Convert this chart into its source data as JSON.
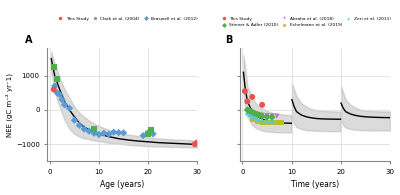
{
  "panel_A": {
    "label": "A",
    "xlabel": "Age (years)",
    "ylabel": "NEE (gC m⁻² yr⁻1)",
    "xlim": [
      -0.5,
      30
    ],
    "ylim": [
      -1500,
      1800
    ],
    "yticks": [
      -1000,
      0,
      1000
    ],
    "xticks": [
      0,
      10,
      20,
      30
    ],
    "curve_x": [
      0.3,
      0.5,
      1,
      1.5,
      2,
      3,
      4,
      5,
      6,
      7,
      8,
      9,
      10,
      12,
      14,
      16,
      18,
      20,
      22,
      25,
      28,
      30
    ],
    "curve_y": [
      1500,
      1350,
      1000,
      800,
      600,
      250,
      0,
      -200,
      -380,
      -500,
      -580,
      -650,
      -700,
      -780,
      -840,
      -880,
      -910,
      -930,
      -955,
      -975,
      -995,
      -1010
    ],
    "ci_upper": [
      1700,
      1600,
      1350,
      1150,
      950,
      600,
      350,
      100,
      -80,
      -200,
      -310,
      -400,
      -470,
      -580,
      -660,
      -720,
      -760,
      -800,
      -830,
      -860,
      -880,
      -900
    ],
    "ci_lower": [
      1100,
      950,
      550,
      300,
      100,
      -300,
      -550,
      -700,
      -780,
      -830,
      -860,
      -890,
      -910,
      -960,
      -990,
      -1020,
      -1040,
      -1060,
      -1070,
      -1080,
      -1090,
      -1100
    ],
    "this_study": {
      "x": [
        0.8,
        29.5,
        30
      ],
      "y": [
        600,
        -1000,
        -950
      ],
      "color": "#e8534a",
      "marker": "o",
      "size": 18
    },
    "clark2004": {
      "x": [
        0.8,
        1.5,
        9,
        20,
        20.5
      ],
      "y": [
        1250,
        900,
        -550,
        -700,
        -580
      ],
      "color": "#4daf4a",
      "marker": "s",
      "size": 18
    },
    "braswell2012": {
      "x": [
        1.0,
        1.5,
        2.0,
        2.5,
        3.0,
        4.0,
        5.0,
        6.0,
        7.0,
        8.0,
        9.0,
        10.0,
        11.0,
        12.0,
        13.0,
        14.0,
        15.0,
        19.0,
        20.0,
        21.0
      ],
      "y": [
        700,
        500,
        450,
        300,
        150,
        50,
        -300,
        -450,
        -560,
        -620,
        -680,
        -720,
        -680,
        -710,
        -650,
        -660,
        -670,
        -750,
        -660,
        -700
      ],
      "color": "#5b9bd5",
      "marker": "D",
      "size": 14
    },
    "legend": [
      {
        "label": "This Study",
        "color": "#e8534a",
        "marker": "o"
      },
      {
        "label": "Clark et al. (2004)",
        "color": "#4daf4a",
        "marker": "s"
      },
      {
        "label": "Braswell et al. (2012)",
        "color": "#5b9bd5",
        "marker": "D"
      }
    ]
  },
  "panel_B": {
    "label": "B",
    "xlabel": "Time (years)",
    "xlim": [
      -0.5,
      30
    ],
    "ylim": [
      -1500,
      1800
    ],
    "yticks": [
      -1000,
      0,
      1000
    ],
    "xticks": [
      0,
      10,
      20,
      30
    ],
    "curve_seg1_x": [
      0.2,
      0.5,
      1,
      2,
      3,
      4,
      5,
      6,
      7,
      8,
      9,
      9.95
    ],
    "curve_seg1_y": [
      1100,
      700,
      250,
      -50,
      -180,
      -270,
      -320,
      -350,
      -370,
      -380,
      -385,
      -390
    ],
    "ci_seg1_upper": [
      1600,
      1300,
      700,
      350,
      150,
      50,
      -30,
      -80,
      -110,
      -130,
      -145,
      -150
    ],
    "ci_seg1_lower": [
      500,
      100,
      -200,
      -450,
      -550,
      -600,
      -630,
      -640,
      -650,
      -655,
      -658,
      -660
    ],
    "curve_seg2_x": [
      10.05,
      10.5,
      11,
      12,
      13,
      14,
      15,
      16,
      17,
      18,
      19,
      19.95
    ],
    "curve_seg2_y": [
      300,
      100,
      -50,
      -150,
      -200,
      -230,
      -250,
      -260,
      -265,
      -268,
      -270,
      -272
    ],
    "ci_seg2_upper": [
      800,
      600,
      400,
      200,
      100,
      30,
      0,
      -20,
      -35,
      -40,
      -45,
      -47
    ],
    "ci_seg2_lower": [
      -200,
      -400,
      -500,
      -560,
      -590,
      -600,
      -610,
      -615,
      -618,
      -620,
      -621,
      -622
    ],
    "curve_seg3_x": [
      20.05,
      20.5,
      21,
      22,
      23,
      24,
      25,
      26,
      27,
      28,
      29,
      30
    ],
    "curve_seg3_y": [
      200,
      50,
      -50,
      -120,
      -160,
      -185,
      -200,
      -210,
      -215,
      -220,
      -223,
      -225
    ],
    "ci_seg3_upper": [
      700,
      500,
      300,
      150,
      60,
      10,
      -15,
      -30,
      -38,
      -43,
      -46,
      -48
    ],
    "ci_seg3_lower": [
      -300,
      -450,
      -520,
      -560,
      -580,
      -590,
      -595,
      -598,
      -600,
      -601,
      -602,
      -603
    ],
    "this_study": {
      "x": [
        0.5,
        1.0,
        2.0,
        4.0
      ],
      "y": [
        550,
        250,
        380,
        150
      ],
      "color": "#e8534a",
      "marker": "o",
      "size": 18
    },
    "stinner2010": {
      "x": [
        1.0,
        1.5,
        2.0,
        2.5,
        3.0,
        3.5,
        4.0,
        5.0,
        6.0
      ],
      "y": [
        0,
        -30,
        -60,
        -100,
        -130,
        -160,
        -185,
        -200,
        -210
      ],
      "color": "#4daf4a",
      "marker": "D",
      "size": 14
    },
    "zeri2011": {
      "x": [
        1.0,
        1.5,
        2.0,
        2.5,
        3.0,
        4.0,
        5.0,
        6.0
      ],
      "y": [
        -80,
        -130,
        -180,
        -220,
        -260,
        -290,
        -310,
        -320
      ],
      "color": "#56c8d8",
      "marker": "^",
      "size": 14
    },
    "echelman2019": {
      "x": [
        2.0,
        3.0,
        4.0,
        5.0,
        6.0,
        7.0,
        8.0
      ],
      "y": [
        -280,
        -330,
        -360,
        -370,
        -365,
        -370,
        -375
      ],
      "color": "#bcbd22",
      "marker": "s",
      "size": 14
    },
    "abraha2018": {
      "x": [
        1.0,
        1.5,
        2.0,
        2.5,
        3.0,
        3.5,
        4.0,
        5.0,
        6.0,
        7.0
      ],
      "y": [
        -20,
        -60,
        -90,
        -110,
        -130,
        -145,
        -155,
        -165,
        -175,
        -180
      ],
      "color": "#c971d8",
      "marker": "v",
      "size": 14
    },
    "legend": [
      {
        "label": "This Study",
        "color": "#e8534a",
        "marker": "o"
      },
      {
        "label": "Stinner & Adler (2010)",
        "color": "#4daf4a",
        "marker": "D"
      },
      {
        "label": "Abraha et al. (2018)",
        "color": "#c971d8",
        "marker": "v"
      },
      {
        "label": "Echelmann et al. (2019)",
        "color": "#bcbd22",
        "marker": "s"
      },
      {
        "label": "Zeri et al. (2011)",
        "color": "#56c8d8",
        "marker": "^"
      }
    ]
  },
  "bg_color": "#ffffff",
  "plot_bg": "#ffffff",
  "grid_color": "#d8d8d8",
  "curve_color": "#000000",
  "ci_color": "#b0b0b0"
}
